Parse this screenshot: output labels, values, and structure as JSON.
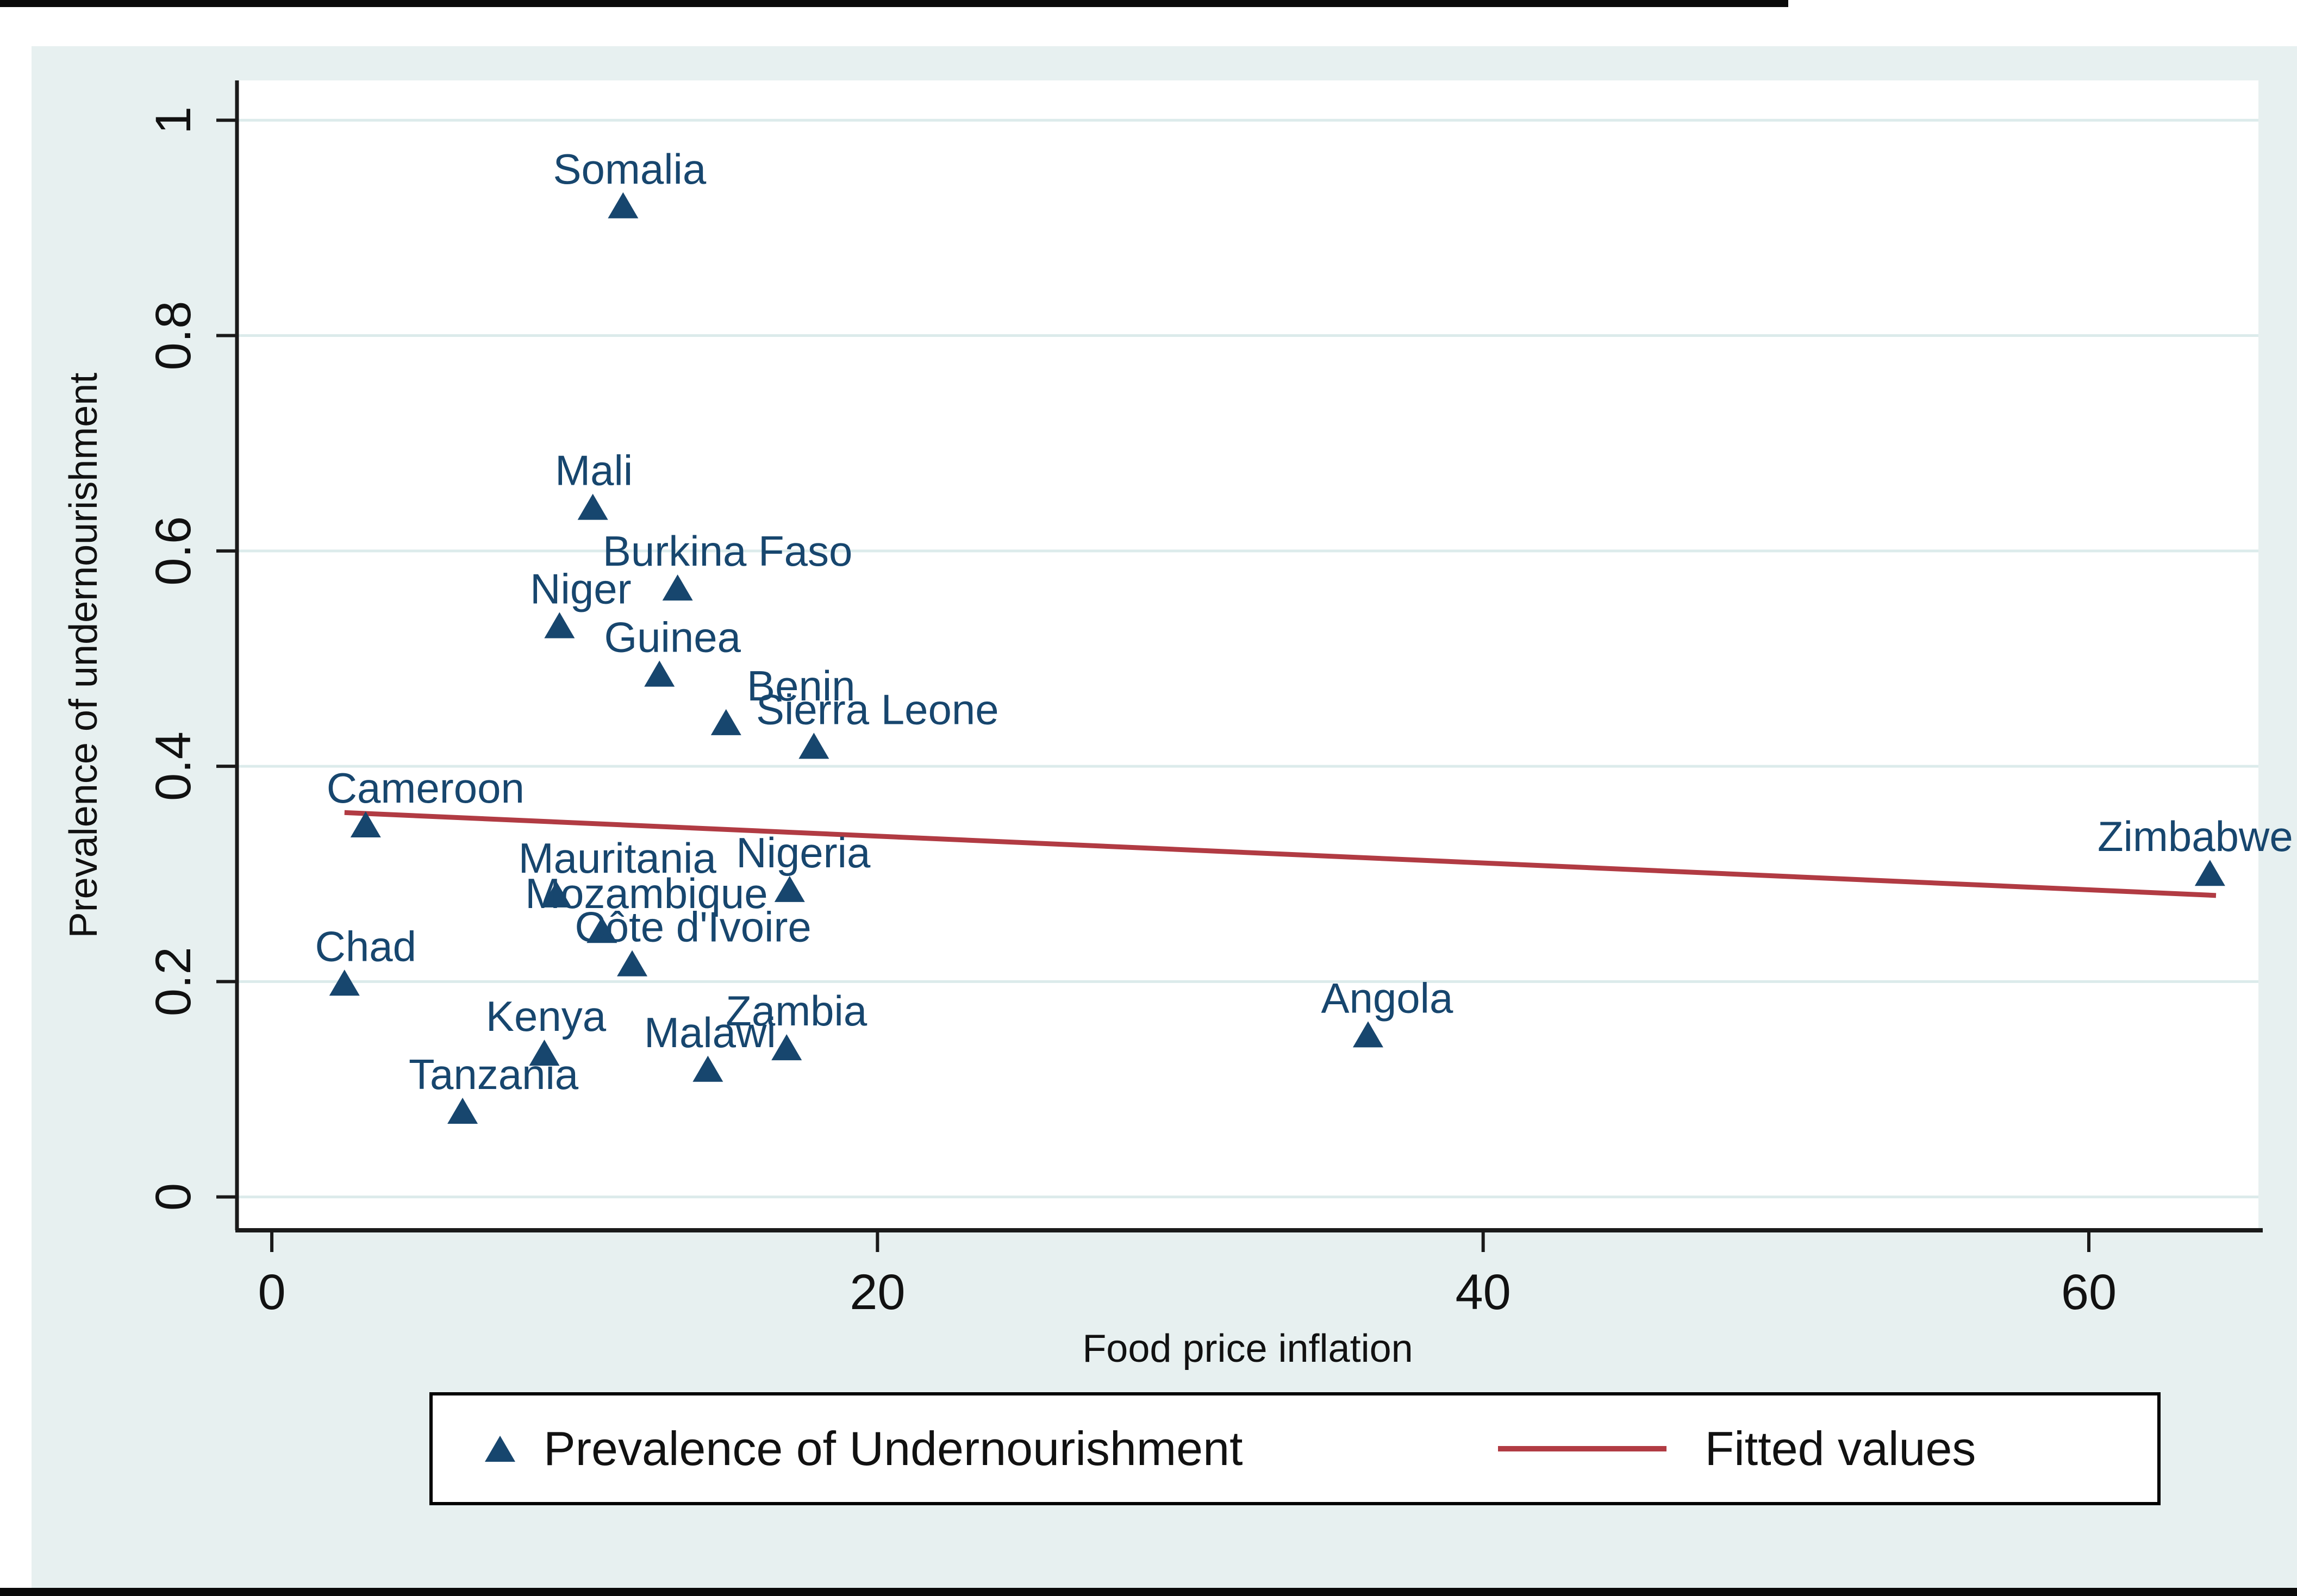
{
  "figure": {
    "background_color": "#e7f0f0",
    "plot_background_color": "#ffffff",
    "grid_color": "#dcebeb",
    "axis_color": "#1a1a1a",
    "tick_label_color": "#111111",
    "marker_color": "#17466e",
    "fit_line_color": "#b13b43",
    "scan_border_color": "#0a0a0a"
  },
  "chart_data": {
    "type": "scatter",
    "title": "",
    "xlabel": "Food price inflation",
    "ylabel": "Prevalence of undernourishment",
    "xlim": [
      -1.15,
      65.6
    ],
    "ylim": [
      -0.031,
      1.037
    ],
    "x_ticks": [
      0,
      20,
      40,
      60
    ],
    "x_tick_labels": [
      "0",
      "20",
      "40",
      "60"
    ],
    "y_ticks": [
      0,
      0.2,
      0.4,
      0.6,
      0.8,
      1
    ],
    "y_tick_labels": [
      "0",
      "0.2",
      "0.4",
      "0.6",
      "0.8",
      "1"
    ],
    "grid": "horizontal",
    "legend_position": "bottom",
    "series": [
      {
        "name": "Prevalence of Undernourishment",
        "type": "scatter",
        "marker": "triangle",
        "points": [
          {
            "label": "Somalia",
            "x": 11.6,
            "y": 0.92,
            "dx": 12
          },
          {
            "label": "Mali",
            "x": 10.6,
            "y": 0.64,
            "dx": 2
          },
          {
            "label": "Burkina Faso",
            "x": 13.4,
            "y": 0.565,
            "dx": 92
          },
          {
            "label": "Niger",
            "x": 9.5,
            "y": 0.53,
            "dx": 39
          },
          {
            "label": "Guinea",
            "x": 12.8,
            "y": 0.485,
            "dx": 24
          },
          {
            "label": "Benin",
            "x": 15.0,
            "y": 0.44,
            "dx": 138
          },
          {
            "label": "Sierra Leone",
            "x": 17.9,
            "y": 0.418,
            "dx": 117
          },
          {
            "label": "Cameroon",
            "x": 3.1,
            "y": 0.345,
            "dx": 110
          },
          {
            "label": "Nigeria",
            "x": 17.1,
            "y": 0.285,
            "dx": 25
          },
          {
            "label": "Mauritania",
            "x": 9.4,
            "y": 0.28,
            "dx": 112
          },
          {
            "label": "Mozambique",
            "x": 10.9,
            "y": 0.247,
            "dx": 82
          },
          {
            "label": "Côte d'Ivoire",
            "x": 11.9,
            "y": 0.216,
            "dx": 112
          },
          {
            "label": "Chad",
            "x": 2.4,
            "y": 0.198,
            "dx": 39
          },
          {
            "label": "Angola",
            "x": 36.2,
            "y": 0.15,
            "dx": 35
          },
          {
            "label": "Zambia",
            "x": 17.0,
            "y": 0.138,
            "dx": 18
          },
          {
            "label": "Kenya",
            "x": 9.0,
            "y": 0.133,
            "dx": 3
          },
          {
            "label": "Malawi",
            "x": 14.4,
            "y": 0.118,
            "dx": 4
          },
          {
            "label": "Tanzania",
            "x": 6.3,
            "y": 0.079,
            "dx": 57
          },
          {
            "label": "Zimbabwe",
            "x": 64.0,
            "y": 0.3,
            "dx": -27
          }
        ]
      },
      {
        "name": "Fitted values",
        "type": "line",
        "x": [
          2.4,
          64.2
        ],
        "y": [
          0.357,
          0.28
        ]
      }
    ]
  }
}
